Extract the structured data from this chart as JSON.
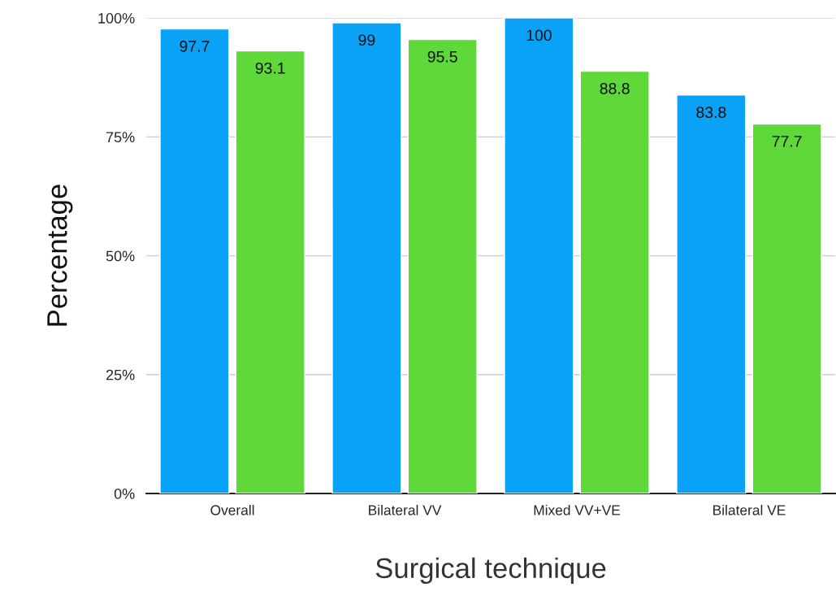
{
  "chart_data": {
    "type": "bar",
    "xlabel": "Surgical technique",
    "ylabel": "Percentage",
    "categories": [
      "Overall",
      "Bilateral VV",
      "Mixed VV+VE",
      "Bilateral VE"
    ],
    "series": [
      {
        "color": "#0aa2f7",
        "values": [
          97.7,
          99,
          100,
          83.8
        ]
      },
      {
        "color": "#5fd83a",
        "values": [
          93.1,
          95.5,
          88.8,
          77.7
        ]
      }
    ],
    "ylim": [
      0,
      100
    ],
    "yticks": [
      {
        "value": 0,
        "label": "0%"
      },
      {
        "value": 25,
        "label": "25%"
      },
      {
        "value": 50,
        "label": "50%"
      },
      {
        "value": 75,
        "label": "75%"
      },
      {
        "value": 100,
        "label": "100%"
      }
    ],
    "grid": "y",
    "data_labels": true
  }
}
